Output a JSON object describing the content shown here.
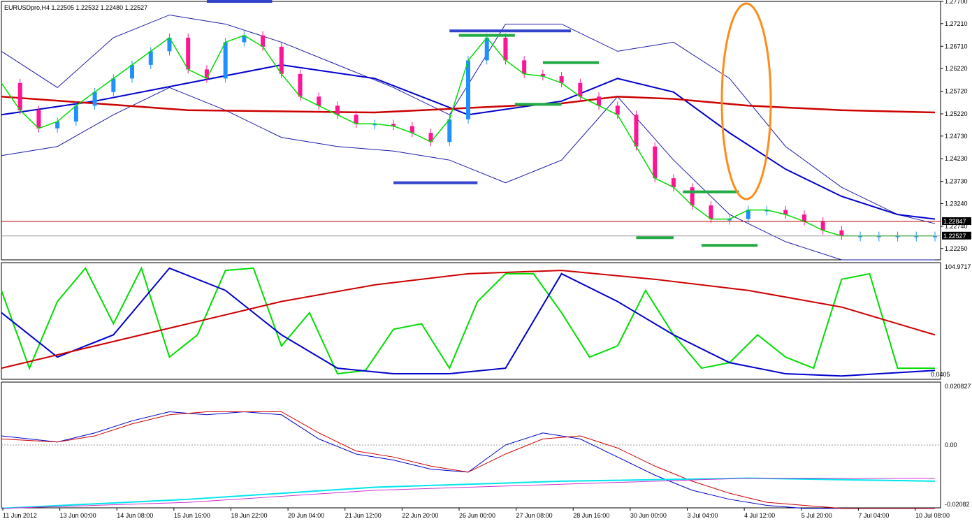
{
  "window": {
    "header": "EURUSDpro,H4  1.22505 1.22532 1.22480 1.22527"
  },
  "colors": {
    "bull_candle": "#1e90ff",
    "bear_candle": "#ff1493",
    "bollinger": "#1a1aa8",
    "envelope": "#c00000",
    "fast_ma": "#00dd00",
    "mid_ma": "#0000cc",
    "slow_ma": "#cc0000",
    "cyan_line": "#00e5ee",
    "magenta_line": "#cc33cc",
    "ellipse": "#ff8c1a",
    "level_blue": "#3344cc",
    "level_green": "#22aa44",
    "badge_bg": "#000000",
    "badge_text": "#ffffff"
  },
  "chart_data": [
    {
      "type": "line",
      "panel": "price",
      "symbol": "EURUSDpro",
      "timeframe": "H4",
      "ohlc_last": {
        "open": 1.22505,
        "high": 1.22532,
        "low": 1.2248,
        "close": 1.22527
      },
      "ylim": [
        1.22,
        1.277
      ],
      "y_ticks": [
        "1.27700",
        "1.27210",
        "1.26710",
        "1.26220",
        "1.25720",
        "1.25220",
        "1.24730",
        "1.24230",
        "1.23730",
        "1.23240",
        "1.22740",
        "1.22250"
      ],
      "price_labels": [
        {
          "text": "1.22847",
          "value": 1.22847
        },
        {
          "text": "1.22527",
          "value": 1.22527
        }
      ],
      "x_labels": [
        "11 Jun 2012",
        "13 Jun 00:00",
        "14 Jun 08:00",
        "15 Jun 16:00",
        "18 Jun 22:00",
        "20 Jun 04:00",
        "21 Jun 12:00",
        "22 Jun 20:00",
        "26 Jun 00:00",
        "27 Jun 08:00",
        "28 Jun 16:00",
        "30 Jun 00:00",
        "3 Jul 04:00",
        "4 Jul 12:00",
        "5 Jul 20:00",
        "7 Jul 04:00",
        "10 Jul 08:00"
      ],
      "series": [
        {
          "kind": "close",
          "x": [
            0,
            2,
            4,
            6,
            8,
            10,
            12,
            14,
            16,
            18,
            20,
            22,
            24,
            26,
            28,
            30,
            32,
            34,
            36,
            38,
            40,
            42,
            44,
            46,
            48,
            50,
            52,
            54,
            56,
            58,
            60,
            62,
            64,
            66,
            68,
            70,
            72,
            74,
            76,
            78,
            80,
            82,
            84,
            86,
            88,
            90,
            92,
            94,
            96,
            98,
            100
          ],
          "values": [
            1.259,
            1.253,
            1.249,
            1.2505,
            1.254,
            1.257,
            1.26,
            1.263,
            1.266,
            1.269,
            1.262,
            1.26,
            1.268,
            1.2695,
            1.267,
            1.261,
            1.256,
            1.254,
            1.252,
            1.25,
            1.25,
            1.2495,
            1.248,
            1.246,
            1.251,
            1.264,
            1.269,
            1.264,
            1.261,
            1.2605,
            1.259,
            1.256,
            1.254,
            1.252,
            1.245,
            1.238,
            1.236,
            1.232,
            1.229,
            1.229,
            1.231,
            1.231,
            1.23,
            1.2285,
            1.2265,
            1.2253,
            1.2253,
            1.2253,
            1.2253,
            1.2253,
            1.2253
          ]
        },
        {
          "kind": "bollinger",
          "band": "upper",
          "x": [
            0,
            6,
            12,
            18,
            24,
            30,
            36,
            42,
            48,
            54,
            60,
            66,
            72,
            78,
            84,
            90,
            96,
            100
          ],
          "values": [
            1.266,
            1.258,
            1.269,
            1.274,
            1.272,
            1.268,
            1.263,
            1.258,
            1.252,
            1.272,
            1.272,
            1.266,
            1.268,
            1.26,
            1.245,
            1.236,
            1.23,
            1.228
          ]
        },
        {
          "kind": "bollinger",
          "band": "lower",
          "x": [
            0,
            6,
            12,
            18,
            24,
            30,
            36,
            42,
            48,
            54,
            60,
            66,
            72,
            78,
            84,
            90,
            96,
            100
          ],
          "values": [
            1.243,
            1.245,
            1.252,
            1.258,
            1.253,
            1.247,
            1.245,
            1.244,
            1.242,
            1.237,
            1.242,
            1.256,
            1.242,
            1.23,
            1.224,
            1.22,
            1.22,
            1.22
          ]
        },
        {
          "kind": "ma",
          "name": "",
          "x": [
            0,
            10,
            20,
            30,
            40,
            50,
            60,
            66,
            72,
            78,
            84,
            90,
            96,
            100
          ],
          "values": [
            1.252,
            1.255,
            1.259,
            1.263,
            1.26,
            1.252,
            1.255,
            1.26,
            1.257,
            1.248,
            1.24,
            1.234,
            1.23,
            1.229
          ]
        },
        {
          "kind": "ma_slow",
          "name": "",
          "x": [
            0,
            20,
            40,
            60,
            66,
            72,
            80,
            90,
            100
          ],
          "values": [
            1.256,
            1.253,
            1.2525,
            1.2545,
            1.256,
            1.2555,
            1.254,
            1.253,
            1.2525
          ]
        }
      ],
      "levels": [
        {
          "color": "blue",
          "x0": 22,
          "x1": 29,
          "value": 1.277
        },
        {
          "color": "blue",
          "x0": 48,
          "x1": 61,
          "value": 1.2705
        },
        {
          "color": "green",
          "x0": 49,
          "x1": 55,
          "value": 1.2695
        },
        {
          "color": "blue",
          "x0": 42,
          "x1": 51,
          "value": 1.237
        },
        {
          "color": "green",
          "x0": 58,
          "x1": 64,
          "value": 1.2635
        },
        {
          "color": "green",
          "x0": 55,
          "x1": 60,
          "value": 1.2543
        },
        {
          "color": "green",
          "x0": 73,
          "x1": 79,
          "value": 1.235
        },
        {
          "color": "green",
          "x0": 68,
          "x1": 72,
          "value": 1.2249
        },
        {
          "color": "green",
          "x0": 75,
          "x1": 81,
          "value": 1.2232
        }
      ]
    },
    {
      "type": "line",
      "panel": "stochastic",
      "ylim": [
        0,
        104.9717
      ],
      "y_ticks": [
        "104.9717",
        "0.0405"
      ],
      "series": [
        {
          "name": "",
          "x": [
            0,
            3,
            6,
            9,
            12,
            15,
            18,
            21,
            24,
            27,
            30,
            33,
            36,
            39,
            42,
            45,
            48,
            51,
            54,
            57,
            60,
            63,
            66,
            69,
            72,
            75,
            78,
            81,
            84,
            87,
            90,
            93,
            96,
            100
          ],
          "values": [
            80,
            10,
            70,
            100,
            50,
            100,
            20,
            40,
            98,
            100,
            30,
            60,
            5,
            8,
            45,
            50,
            10,
            70,
            95,
            95,
            60,
            20,
            30,
            80,
            40,
            10,
            15,
            40,
            20,
            10,
            90,
            95,
            10,
            10
          ]
        },
        {
          "name": "",
          "x": [
            0,
            6,
            12,
            18,
            24,
            30,
            36,
            42,
            48,
            54,
            60,
            66,
            72,
            78,
            84,
            90,
            96,
            100
          ],
          "values": [
            60,
            20,
            40,
            100,
            80,
            40,
            10,
            5,
            5,
            10,
            95,
            70,
            40,
            15,
            5,
            3,
            6,
            8
          ]
        },
        {
          "name": "",
          "x": [
            0,
            10,
            20,
            30,
            40,
            50,
            60,
            70,
            80,
            90,
            100
          ],
          "values": [
            10,
            30,
            50,
            70,
            85,
            95,
            98,
            90,
            80,
            65,
            40
          ]
        }
      ]
    },
    {
      "type": "line",
      "panel": "oscillator",
      "ylim": [
        -0.02082,
        0.020827
      ],
      "y_ticks": [
        "0.020827",
        "0.00",
        "-0.02082"
      ],
      "series": [
        {
          "name": "",
          "x": [
            0,
            6,
            10,
            14,
            18,
            22,
            26,
            30,
            34,
            38,
            42,
            46,
            50,
            54,
            58,
            62,
            66,
            70,
            74,
            78,
            82,
            86,
            90,
            94,
            100
          ],
          "values": [
            0.003,
            0.001,
            0.004,
            0.008,
            0.011,
            0.01,
            0.011,
            0.01,
            0.002,
            -0.003,
            -0.005,
            -0.008,
            -0.009,
            0.0,
            0.004,
            0.002,
            -0.004,
            -0.01,
            -0.015,
            -0.018,
            -0.02,
            -0.021,
            -0.021,
            -0.021,
            -0.021
          ]
        },
        {
          "name": "",
          "x": [
            0,
            6,
            10,
            14,
            18,
            22,
            26,
            30,
            34,
            38,
            42,
            46,
            50,
            54,
            58,
            62,
            66,
            70,
            74,
            78,
            82,
            86,
            90,
            94,
            100
          ],
          "values": [
            0.002,
            0.001,
            0.003,
            0.007,
            0.01,
            0.011,
            0.011,
            0.011,
            0.004,
            -0.002,
            -0.004,
            -0.007,
            -0.009,
            -0.003,
            0.002,
            0.003,
            -0.001,
            -0.007,
            -0.012,
            -0.016,
            -0.019,
            -0.02,
            -0.021,
            -0.021,
            -0.021
          ]
        },
        {
          "name": "",
          "x": [
            0,
            20,
            40,
            60,
            80,
            100
          ],
          "values": [
            -0.021,
            -0.018,
            -0.014,
            -0.012,
            -0.011,
            -0.012
          ]
        },
        {
          "name": "",
          "x": [
            0,
            20,
            40,
            60,
            80,
            100
          ],
          "values": [
            -0.021,
            -0.019,
            -0.015,
            -0.013,
            -0.011,
            -0.011
          ]
        }
      ]
    }
  ]
}
